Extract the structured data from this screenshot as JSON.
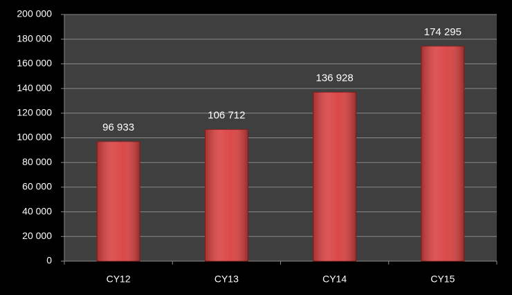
{
  "chart_data": {
    "type": "bar",
    "categories": [
      "CY12",
      "CY13",
      "CY14",
      "CY15"
    ],
    "values": [
      96933,
      106712,
      136928,
      174295
    ],
    "value_labels": [
      "96 933",
      "106 712",
      "136 928",
      "174 295"
    ],
    "color": "#d94040",
    "ylim": [
      0,
      200000
    ],
    "yticks": [
      0,
      {
        "value": 20000,
        "label": "20 000"
      },
      {
        "value": 40000,
        "label": "40 000"
      },
      {
        "value": 60000,
        "label": "60 000"
      },
      {
        "value": 80000,
        "label": "80 000"
      },
      {
        "value": 100000,
        "label": "100 000"
      },
      {
        "value": 120000,
        "label": "120 000"
      },
      {
        "value": 140000,
        "label": "140 000"
      },
      {
        "value": 160000,
        "label": "160 000"
      },
      {
        "value": 180000,
        "label": "180 000"
      },
      {
        "value": 200000,
        "label": "200 000"
      }
    ],
    "grid": true
  }
}
